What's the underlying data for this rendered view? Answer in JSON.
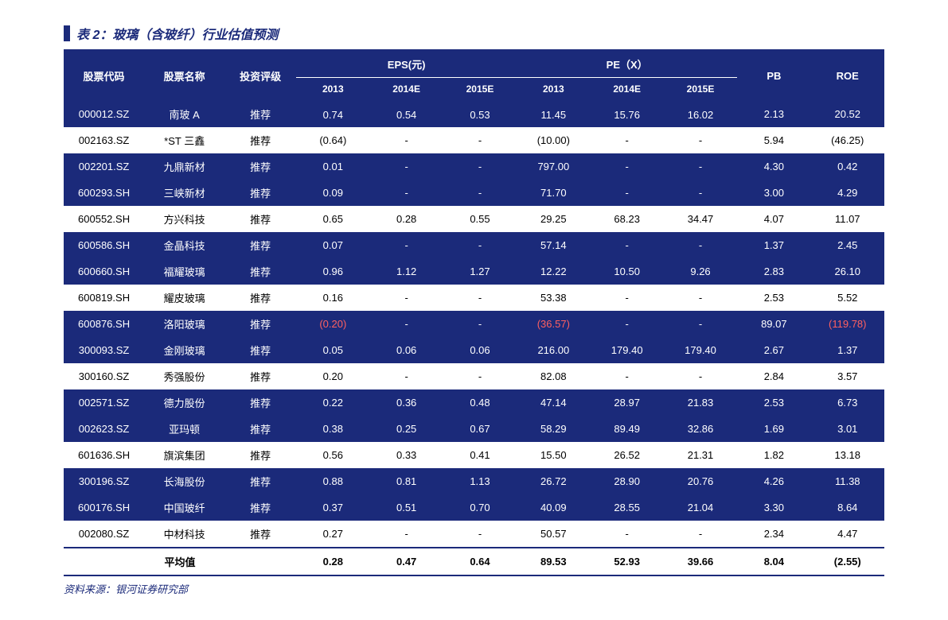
{
  "title": "表 2：玻璃（含玻纤）行业估值预测",
  "source": "资料来源：银河证券研究部",
  "colors": {
    "primary": "#1b2a7a",
    "negative": "#d00000",
    "bg_white": "#ffffff"
  },
  "header": {
    "code": "股票代码",
    "name": "股票名称",
    "rating": "投资评级",
    "eps_group": "EPS(元)",
    "pe_group": "PE（X）",
    "pb": "PB",
    "roe": "ROE",
    "y2013": "2013",
    "y2014e": "2014E",
    "y2015e": "2015E"
  },
  "rows": [
    {
      "bg": "blue",
      "code": "000012.SZ",
      "name": "南玻 A",
      "rating": "推荐",
      "eps13": "0.74",
      "eps14": "0.54",
      "eps15": "0.53",
      "pe13": "11.45",
      "pe14": "15.76",
      "pe15": "16.02",
      "pb": "2.13",
      "roe": "20.52"
    },
    {
      "bg": "white",
      "code": "002163.SZ",
      "name": "*ST 三鑫",
      "rating": "推荐",
      "eps13": "(0.64)",
      "eps13_neg": true,
      "eps14": "-",
      "eps15": "-",
      "pe13": "(10.00)",
      "pe13_neg": true,
      "pe14": "-",
      "pe15": "-",
      "pb": "5.94",
      "roe": "(46.25)",
      "roe_neg": true
    },
    {
      "bg": "blue",
      "code": "002201.SZ",
      "name": "九鼎新材",
      "rating": "推荐",
      "eps13": "0.01",
      "eps14": "-",
      "eps15": "-",
      "pe13": "797.00",
      "pe14": "-",
      "pe15": "-",
      "pb": "4.30",
      "roe": "0.42"
    },
    {
      "bg": "blue",
      "code": "600293.SH",
      "name": "三峡新材",
      "rating": "推荐",
      "eps13": "0.09",
      "eps14": "-",
      "eps15": "-",
      "pe13": "71.70",
      "pe14": "-",
      "pe15": "-",
      "pb": "3.00",
      "roe": "4.29"
    },
    {
      "bg": "white",
      "code": "600552.SH",
      "name": "方兴科技",
      "rating": "推荐",
      "eps13": "0.65",
      "eps14": "0.28",
      "eps15": "0.55",
      "pe13": "29.25",
      "pe14": "68.23",
      "pe15": "34.47",
      "pb": "4.07",
      "roe": "11.07"
    },
    {
      "bg": "blue",
      "code": "600586.SH",
      "name": "金晶科技",
      "rating": "推荐",
      "eps13": "0.07",
      "eps14": "-",
      "eps15": "-",
      "pe13": "57.14",
      "pe14": "-",
      "pe15": "-",
      "pb": "1.37",
      "roe": "2.45"
    },
    {
      "bg": "blue",
      "code": "600660.SH",
      "name": "福耀玻璃",
      "rating": "推荐",
      "eps13": "0.96",
      "eps14": "1.12",
      "eps15": "1.27",
      "pe13": "12.22",
      "pe14": "10.50",
      "pe15": "9.26",
      "pb": "2.83",
      "roe": "26.10"
    },
    {
      "bg": "white",
      "code": "600819.SH",
      "name": "耀皮玻璃",
      "rating": "推荐",
      "eps13": "0.16",
      "eps14": "-",
      "eps15": "-",
      "pe13": "53.38",
      "pe14": "-",
      "pe15": "-",
      "pb": "2.53",
      "roe": "5.52"
    },
    {
      "bg": "blue",
      "code": "600876.SH",
      "name": "洛阳玻璃",
      "rating": "推荐",
      "eps13": "(0.20)",
      "eps13_neg": true,
      "eps14": "-",
      "eps15": "-",
      "pe13": "(36.57)",
      "pe13_neg": true,
      "pe14": "-",
      "pe15": "-",
      "pb": "89.07",
      "roe": "(119.78)",
      "roe_neg": true
    },
    {
      "bg": "blue",
      "code": "300093.SZ",
      "name": "金刚玻璃",
      "rating": "推荐",
      "eps13": "0.05",
      "eps14": "0.06",
      "eps15": "0.06",
      "pe13": "216.00",
      "pe14": "179.40",
      "pe15": "179.40",
      "pb": "2.67",
      "roe": "1.37"
    },
    {
      "bg": "white",
      "code": "300160.SZ",
      "name": "秀强股份",
      "rating": "推荐",
      "eps13": "0.20",
      "eps14": "-",
      "eps15": "-",
      "pe13": "82.08",
      "pe14": "-",
      "pe15": "-",
      "pb": "2.84",
      "roe": "3.57"
    },
    {
      "bg": "blue",
      "code": "002571.SZ",
      "name": "德力股份",
      "rating": "推荐",
      "eps13": "0.22",
      "eps14": "0.36",
      "eps15": "0.48",
      "pe13": "47.14",
      "pe14": "28.97",
      "pe15": "21.83",
      "pb": "2.53",
      "roe": "6.73"
    },
    {
      "bg": "blue",
      "code": "002623.SZ",
      "name": "亚玛顿",
      "rating": "推荐",
      "eps13": "0.38",
      "eps14": "0.25",
      "eps15": "0.67",
      "pe13": "58.29",
      "pe14": "89.49",
      "pe15": "32.86",
      "pb": "1.69",
      "roe": "3.01"
    },
    {
      "bg": "white",
      "code": "601636.SH",
      "name": "旗滨集团",
      "rating": "推荐",
      "eps13": "0.56",
      "eps14": "0.33",
      "eps15": "0.41",
      "pe13": "15.50",
      "pe14": "26.52",
      "pe15": "21.31",
      "pb": "1.82",
      "roe": "13.18"
    },
    {
      "bg": "blue",
      "code": "300196.SZ",
      "name": "长海股份",
      "rating": "推荐",
      "eps13": "0.88",
      "eps14": "0.81",
      "eps15": "1.13",
      "pe13": "26.72",
      "pe14": "28.90",
      "pe15": "20.76",
      "pb": "4.26",
      "roe": "11.38"
    },
    {
      "bg": "blue",
      "code": "600176.SH",
      "name": "中国玻纤",
      "rating": "推荐",
      "eps13": "0.37",
      "eps14": "0.51",
      "eps15": "0.70",
      "pe13": "40.09",
      "pe14": "28.55",
      "pe15": "21.04",
      "pb": "3.30",
      "roe": "8.64"
    },
    {
      "bg": "white",
      "code": "002080.SZ",
      "name": "中材科技",
      "rating": "推荐",
      "eps13": "0.27",
      "eps14": "-",
      "eps15": "-",
      "pe13": "50.57",
      "pe14": "-",
      "pe15": "-",
      "pb": "2.34",
      "roe": "4.47"
    }
  ],
  "average": {
    "label": "平均值",
    "eps13": "0.28",
    "eps14": "0.47",
    "eps15": "0.64",
    "pe13": "89.53",
    "pe14": "52.93",
    "pe15": "39.66",
    "pb": "8.04",
    "roe": "(2.55)",
    "roe_neg": true
  }
}
